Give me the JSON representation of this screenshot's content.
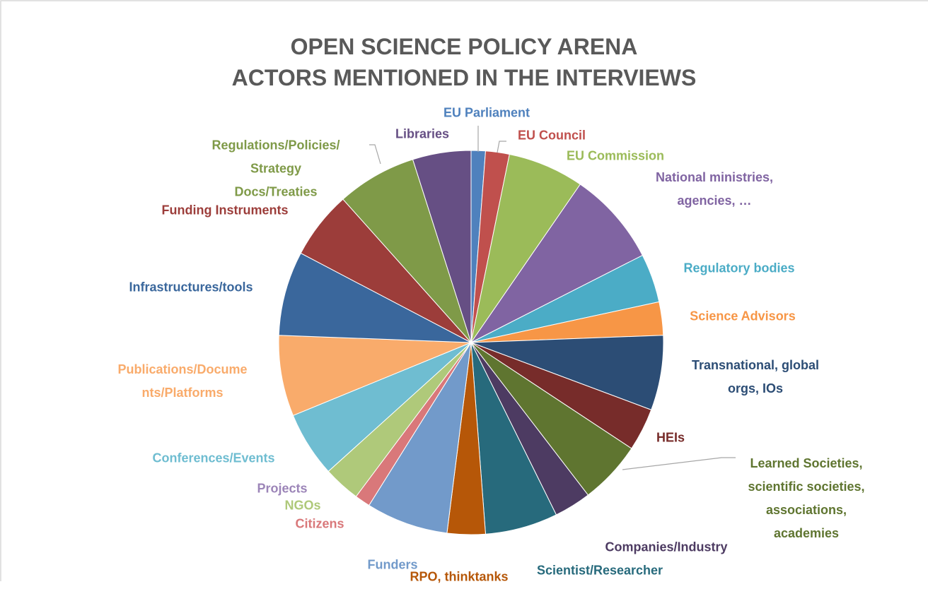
{
  "chart_data": {
    "type": "pie",
    "title": "OPEN SCIENCE POLICY ARENA\nACTORS MENTIONED IN THE INTERVIEWS",
    "categories": [
      "EU Parliament",
      "EU Council",
      "EU Commission",
      "National ministries,\nagencies, …",
      "Regulatory bodies",
      "Science Advisors",
      "Transnational, global\norgs, IOs",
      "HEIs",
      "Learned Societies,\nscientific societies,\nassociations,\nacademies",
      "Companies/Industry",
      "Scientist/Researcher",
      "RPO, thinktanks",
      "Funders",
      "Citizens",
      "NGOs",
      "Projects",
      "Conferences/Events",
      "Publications/Docume\nnts/Platforms",
      "Infrastructures/tools",
      "Funding Instruments",
      "Regulations/Policies/\nStrategy\nDocs/Treaties",
      "Libraries"
    ],
    "values": [
      1.2,
      2.0,
      6.4,
      7.9,
      4.1,
      2.8,
      6.3,
      3.6,
      5.3,
      3.1,
      6.1,
      3.2,
      6.9,
      1.3,
      3.1,
      0,
      5.5,
      6.8,
      7.1,
      5.7,
      6.7,
      4.9
    ],
    "colors": [
      "#4f81bd",
      "#c0504d",
      "#9bbb59",
      "#8064a2",
      "#4bacc6",
      "#f79646",
      "#2c4d75",
      "#772c2a",
      "#5f7530",
      "#4d3b62",
      "#276a7c",
      "#b65708",
      "#729aca",
      "#d9787a",
      "#afc97a",
      "#9c85b8",
      "#6fbdd1",
      "#f9ab6b",
      "#3a679c",
      "#9c3d3a",
      "#7f9a48",
      "#664f84"
    ]
  }
}
